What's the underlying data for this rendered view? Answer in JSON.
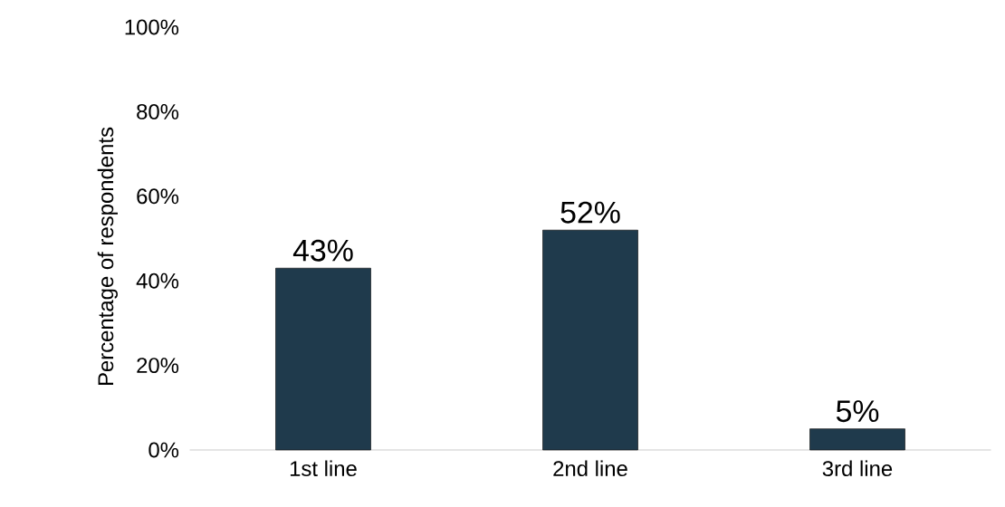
{
  "chart_data": {
    "type": "bar",
    "ylabel": "Percentage of respondents",
    "categories": [
      "1st line",
      "2nd line",
      "3rd line"
    ],
    "values": [
      43,
      52,
      5
    ],
    "value_labels": [
      "43%",
      "52%",
      "5%"
    ],
    "color": "#1f3a4c",
    "ylim": [
      0,
      100
    ],
    "yticks": [
      {
        "value": 0,
        "label": "0%"
      },
      {
        "value": 20,
        "label": "20%"
      },
      {
        "value": 40,
        "label": "40%"
      },
      {
        "value": 60,
        "label": "60%"
      },
      {
        "value": 80,
        "label": "80%"
      },
      {
        "value": 100,
        "label": "100%"
      }
    ]
  }
}
